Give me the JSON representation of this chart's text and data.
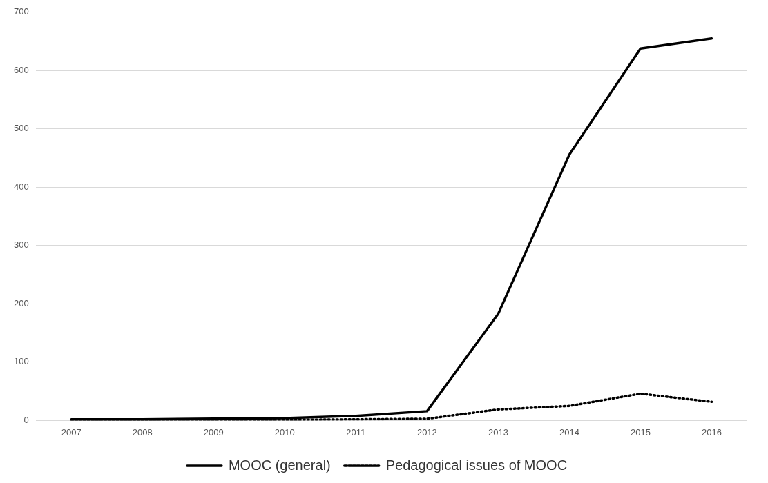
{
  "chart_data": {
    "type": "line",
    "categories": [
      "2007",
      "2008",
      "2009",
      "2010",
      "2011",
      "2012",
      "2013",
      "2014",
      "2015",
      "2016"
    ],
    "series": [
      {
        "name": "MOOC (general)",
        "color": "#000000",
        "line_style": "solid",
        "values": [
          2,
          2,
          3,
          4,
          8,
          16,
          183,
          456,
          638,
          655
        ]
      },
      {
        "name": "Pedagogical issues of MOOC",
        "color": "#000000",
        "line_style": "dotted",
        "values": [
          0,
          0,
          1,
          1,
          2,
          3,
          19,
          25,
          46,
          32
        ]
      }
    ],
    "ylim": [
      0,
      700
    ],
    "yticks": [
      0,
      100,
      200,
      300,
      400,
      500,
      600,
      700
    ],
    "grid": "y",
    "legend": "bottom",
    "marker": "none"
  }
}
